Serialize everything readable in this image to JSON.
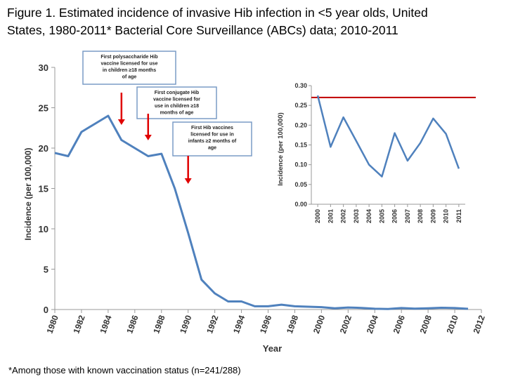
{
  "title": {
    "line1": "Figure 1. Estimated incidence of invasive Hib infection in <5 year olds, United",
    "line2": "States, 1980-2011* Bacterial Core Surveillance (ABCs) data; 2010-2011"
  },
  "footnote": "*Among those with known vaccination status (n=241/288)",
  "colors": {
    "series": "#4f81bd",
    "reference": "#c00000",
    "arrow": "#e00000",
    "callout_border": "#7a9cc6",
    "axis": "#999999"
  },
  "callouts": [
    {
      "year": 1985,
      "lines": [
        "First polysaccharide Hib",
        "vaccine licensed for use",
        "in children ≥18 months",
        "of age"
      ]
    },
    {
      "year": 1987,
      "lines": [
        "First conjugate Hib",
        "vaccine licensed for",
        "use in children ≥18",
        "months of age"
      ]
    },
    {
      "year": 1990,
      "lines": [
        "First Hib vaccines",
        "licensed for use in",
        "infants ≥2 months of",
        "age"
      ]
    }
  ],
  "chart_data": [
    {
      "type": "line",
      "title": "",
      "xlabel": "Year",
      "ylabel": "Incidence (per 100,000)",
      "xlim": [
        1980,
        2012
      ],
      "ylim": [
        0,
        30
      ],
      "yticks": [
        0,
        5,
        10,
        15,
        20,
        25,
        30
      ],
      "xticks": [
        1980,
        1982,
        1984,
        1986,
        1988,
        1990,
        1992,
        1994,
        1996,
        1998,
        2000,
        2002,
        2004,
        2006,
        2008,
        2010,
        2012
      ],
      "grid": false,
      "series": [
        {
          "name": "Incidence",
          "x": [
            1980,
            1981,
            1982,
            1983,
            1984,
            1985,
            1986,
            1987,
            1988,
            1989,
            1990,
            1991,
            1992,
            1993,
            1994,
            1995,
            1996,
            1997,
            1998,
            1999,
            2000,
            2001,
            2002,
            2003,
            2004,
            2005,
            2006,
            2007,
            2008,
            2009,
            2010,
            2011
          ],
          "values": [
            19.4,
            19.0,
            22.0,
            23.0,
            24.0,
            21.0,
            20.0,
            19.0,
            19.3,
            15.0,
            9.5,
            3.7,
            2.0,
            1.0,
            1.0,
            0.4,
            0.4,
            0.6,
            0.4,
            0.35,
            0.3,
            0.15,
            0.25,
            0.2,
            0.1,
            0.07,
            0.18,
            0.11,
            0.15,
            0.22,
            0.18,
            0.09
          ]
        }
      ]
    },
    {
      "type": "line",
      "title": "",
      "xlabel": "",
      "ylabel": "Incidence (per 100,000)",
      "xlim": [
        2000,
        2011
      ],
      "ylim": [
        0,
        0.3
      ],
      "yticks": [
        0.0,
        0.05,
        0.1,
        0.15,
        0.2,
        0.25,
        0.3
      ],
      "ytick_labels": [
        "0.00",
        "0.05",
        "0.10",
        "0.15",
        "0.20",
        "0.25",
        "0.30"
      ],
      "xticks": [
        2000,
        2001,
        2002,
        2003,
        2004,
        2005,
        2006,
        2007,
        2008,
        2009,
        2010,
        2011
      ],
      "grid": false,
      "reference_line": 0.27,
      "series": [
        {
          "name": "Incidence",
          "x": [
            2000,
            2001,
            2002,
            2003,
            2004,
            2005,
            2006,
            2007,
            2008,
            2009,
            2010,
            2011
          ],
          "values": [
            0.275,
            0.145,
            0.22,
            0.16,
            0.1,
            0.07,
            0.18,
            0.11,
            0.155,
            0.217,
            0.178,
            0.09
          ]
        }
      ]
    }
  ]
}
